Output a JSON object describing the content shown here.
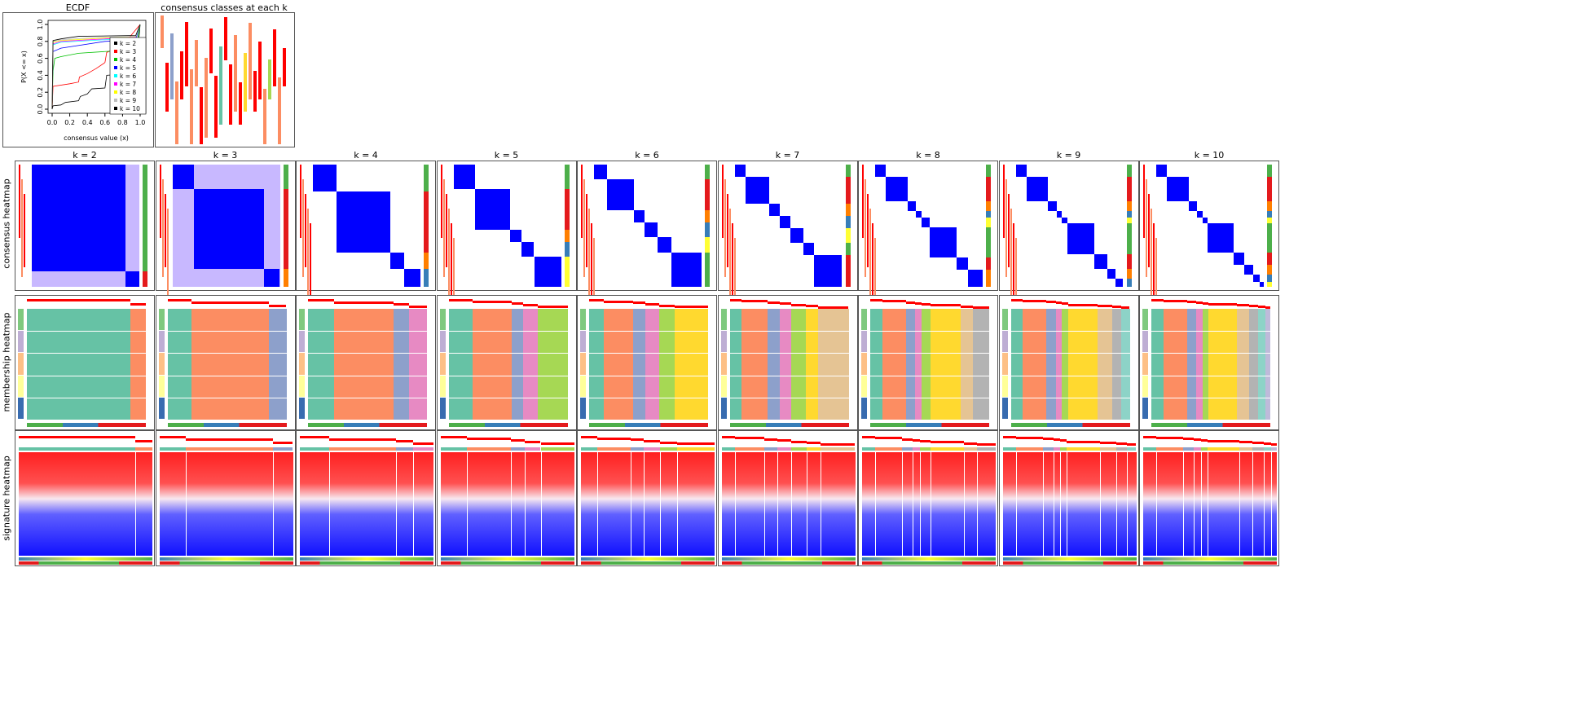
{
  "ecdf_panel": {
    "title": "ECDF"
  },
  "classes_panel": {
    "title": "consensus classes at each k"
  },
  "row_labels": {
    "consensus": "consensus heatmap",
    "membership": "membership heatmap",
    "signature": "signature heatmap"
  },
  "palette": [
    "#66C2A5",
    "#FC8D62",
    "#8DA0CB",
    "#E78AC3",
    "#A6D854",
    "#FFD92F",
    "#E5C494",
    "#B3B3B3",
    "#8DD3C7",
    "#BEBADA"
  ],
  "chart_data": {
    "type": "line",
    "title": "ECDF",
    "xlabel": "consensus value (x)",
    "ylabel": "P(X <= x)",
    "xlim": [
      0,
      1
    ],
    "ylim": [
      0,
      1
    ],
    "xticks": [
      "0.0",
      "0.2",
      "0.4",
      "0.6",
      "0.8",
      "1.0"
    ],
    "yticks": [
      "0.0",
      "0.2",
      "0.4",
      "0.6",
      "0.8",
      "1.0"
    ],
    "legend_position": "bottom-right",
    "series": [
      {
        "name": "k = 2",
        "color": "#000000",
        "x": [
          0,
          0.01,
          0.1,
          0.15,
          0.3,
          0.32,
          0.4,
          0.45,
          0.6,
          0.62,
          0.95,
          1
        ],
        "y": [
          0,
          0.04,
          0.05,
          0.08,
          0.1,
          0.15,
          0.18,
          0.24,
          0.25,
          0.4,
          0.42,
          1
        ]
      },
      {
        "name": "k = 3",
        "color": "#FF0000",
        "x": [
          0,
          0.01,
          0.2,
          0.3,
          0.31,
          0.4,
          0.5,
          0.6,
          0.62,
          0.8,
          1
        ],
        "y": [
          0,
          0.27,
          0.3,
          0.32,
          0.38,
          0.42,
          0.48,
          0.55,
          0.67,
          0.75,
          1
        ]
      },
      {
        "name": "k = 4",
        "color": "#00C000",
        "x": [
          0,
          0.01,
          0.03,
          0.1,
          0.3,
          0.6,
          0.95,
          1
        ],
        "y": [
          0,
          0.45,
          0.6,
          0.62,
          0.66,
          0.68,
          0.7,
          1
        ]
      },
      {
        "name": "k = 5",
        "color": "#0000FF",
        "x": [
          0,
          0.01,
          0.1,
          0.6,
          0.95,
          1
        ],
        "y": [
          0,
          0.68,
          0.72,
          0.8,
          0.82,
          1
        ]
      },
      {
        "name": "k = 6",
        "color": "#00FFFF",
        "x": [
          0,
          0.01,
          0.1,
          0.6,
          0.95,
          1
        ],
        "y": [
          0,
          0.76,
          0.79,
          0.82,
          0.84,
          1
        ]
      },
      {
        "name": "k = 7",
        "color": "#FF00FF",
        "x": [
          0,
          0.01,
          0.1,
          0.6,
          0.95,
          1
        ],
        "y": [
          0,
          0.77,
          0.8,
          0.83,
          0.85,
          1
        ]
      },
      {
        "name": "k = 8",
        "color": "#FFFF00",
        "x": [
          0,
          0.01,
          0.1,
          0.6,
          0.95,
          1
        ],
        "y": [
          0,
          0.79,
          0.81,
          0.84,
          0.86,
          1
        ]
      },
      {
        "name": "k = 9",
        "color": "#BEBEBE",
        "x": [
          0,
          0.01,
          0.1,
          0.6,
          0.95,
          1
        ],
        "y": [
          0,
          0.8,
          0.82,
          0.85,
          0.86,
          1
        ]
      },
      {
        "name": "k = 10",
        "color": "#000000",
        "x": [
          0,
          0.01,
          0.1,
          0.3,
          0.95,
          1
        ],
        "y": [
          0,
          0.81,
          0.83,
          0.86,
          0.87,
          1
        ]
      }
    ]
  },
  "k_columns": [
    {
      "label": "k = 2",
      "sizes": [
        0.87,
        0.13
      ]
    },
    {
      "label": "k = 3",
      "sizes": [
        0.2,
        0.65,
        0.15
      ]
    },
    {
      "label": "k = 4",
      "sizes": [
        0.22,
        0.5,
        0.13,
        0.15
      ]
    },
    {
      "label": "k = 5",
      "sizes": [
        0.2,
        0.33,
        0.1,
        0.12,
        0.25
      ]
    },
    {
      "label": "k = 6",
      "sizes": [
        0.12,
        0.25,
        0.1,
        0.12,
        0.13,
        0.28
      ]
    },
    {
      "label": "k = 7",
      "sizes": [
        0.1,
        0.22,
        0.1,
        0.1,
        0.12,
        0.1,
        0.26
      ]
    },
    {
      "label": "k = 8",
      "sizes": [
        0.1,
        0.2,
        0.08,
        0.05,
        0.08,
        0.25,
        0.1,
        0.14
      ]
    },
    {
      "label": "k = 9",
      "sizes": [
        0.1,
        0.2,
        0.08,
        0.05,
        0.05,
        0.25,
        0.12,
        0.08,
        0.07
      ]
    },
    {
      "label": "k = 10",
      "sizes": [
        0.1,
        0.2,
        0.08,
        0.05,
        0.05,
        0.24,
        0.1,
        0.08,
        0.06,
        0.04
      ]
    }
  ]
}
